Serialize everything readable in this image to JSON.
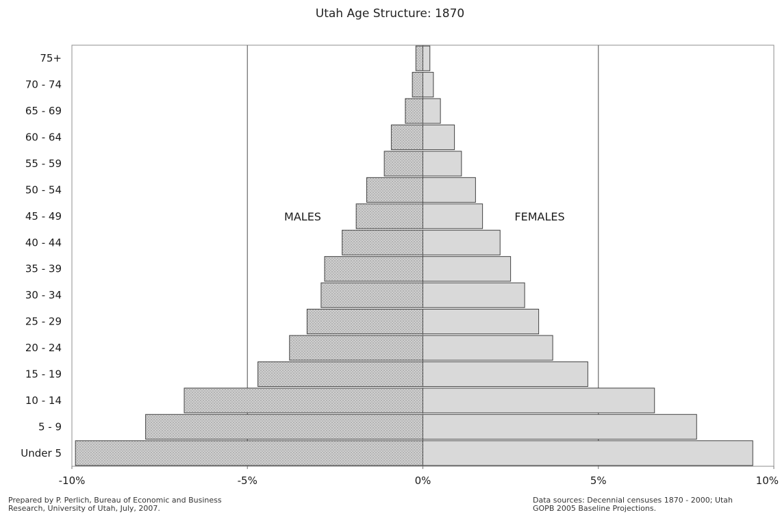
{
  "chart_data": {
    "type": "bar",
    "title": "Utah Age Structure: 1870",
    "orientation": "horizontal population pyramid",
    "categories": [
      "Under 5",
      "5 - 9",
      "10 - 14",
      "15 - 19",
      "20 - 24",
      "25 - 29",
      "30 - 34",
      "35 - 39",
      "40 - 44",
      "45 - 49",
      "50 - 54",
      "55 - 59",
      "60 - 64",
      "65 - 69",
      "70 - 74",
      "75+"
    ],
    "series": [
      {
        "name": "MALES",
        "values": [
          -9.9,
          -7.9,
          -6.8,
          -4.7,
          -3.8,
          -3.3,
          -2.9,
          -2.8,
          -2.3,
          -1.9,
          -1.6,
          -1.1,
          -0.9,
          -0.5,
          -0.3,
          -0.2
        ]
      },
      {
        "name": "FEMALES",
        "values": [
          9.4,
          7.8,
          6.6,
          4.7,
          3.7,
          3.3,
          2.9,
          2.5,
          2.2,
          1.7,
          1.5,
          1.1,
          0.9,
          0.5,
          0.3,
          0.2
        ]
      }
    ],
    "xlim": [
      -10,
      10
    ],
    "x_ticks": [
      -10,
      -5,
      0,
      5,
      10
    ],
    "x_tick_labels": [
      "-10%",
      "-5%",
      "0%",
      "5%",
      "10%"
    ],
    "gridlines": [
      -5,
      5
    ],
    "annotations": [
      "MALES",
      "FEMALES"
    ],
    "colors": {
      "males_fill": "#c8c8c8",
      "females_fill": "#d9d9d9",
      "bar_stroke": "#404040",
      "gridline": "#6a6a6a"
    }
  },
  "notes": {
    "left_lines": [
      "Prepared by P. Perlich, Bureau of Economic and Business",
      "Research, University of Utah, July, 2007."
    ],
    "right_lines": [
      "Data sources: Decennial censuses 1870 - 2000; Utah",
      "GOPB 2005 Baseline Projections."
    ]
  }
}
